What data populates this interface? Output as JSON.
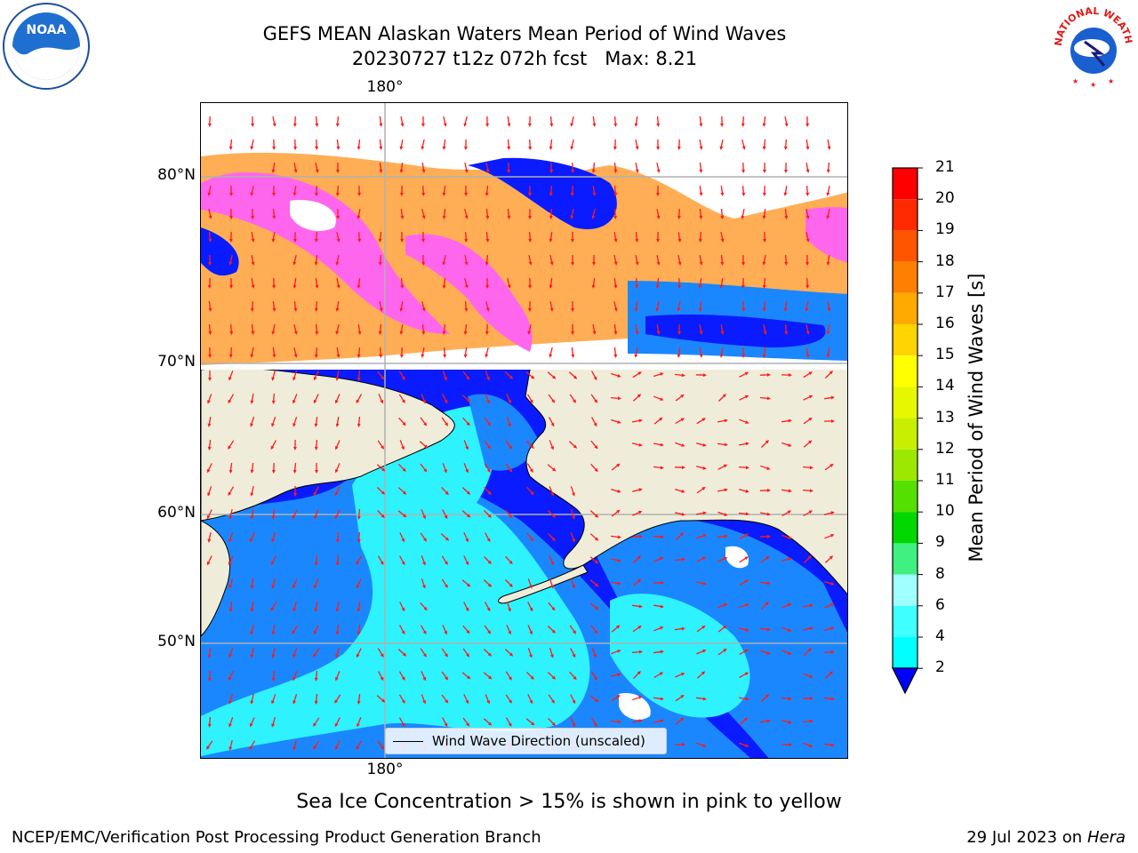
{
  "header": {
    "title_line1": "GEFS MEAN Alaskan Waters Mean Period of Wind Waves",
    "title_line2": "20230727 t12z 072h fcst   Max: 8.21"
  },
  "map": {
    "lon_label_top": "180°",
    "lon_label_bottom": "180°",
    "lat_labels": [
      "80°N",
      "70°N",
      "60°N",
      "50°N"
    ],
    "legend_label": "Wind Wave Direction (unscaled)",
    "colors": {
      "land": "#efedda",
      "ice_pink": "#ff66ee",
      "ice_orange": "#ffae55",
      "ice_light": "#ffd090",
      "wave_blue": "#0a1bff",
      "wave_mid": "#1b87ff",
      "wave_cyan": "#2ff2ff",
      "arrow": "#ff1a1a",
      "grid": "#b0b0b0"
    }
  },
  "colorbar": {
    "label": "Mean Period of Wind Waves [s]",
    "ticks": [
      "21",
      "20",
      "19",
      "18",
      "17",
      "16",
      "15",
      "14",
      "13",
      "12",
      "11",
      "10",
      "9",
      "8",
      "6",
      "4",
      "2"
    ],
    "colors": [
      "#ff0000",
      "#ff2a00",
      "#ff5500",
      "#ff8000",
      "#ffaa00",
      "#ffd400",
      "#ffff00",
      "#e6f700",
      "#c8ef00",
      "#9de800",
      "#55e000",
      "#00d800",
      "#40f080",
      "#a0ffff",
      "#40ffff",
      "#00ffff",
      "#0080ff"
    ],
    "extend_color": "#0000ff"
  },
  "subtitle": "Sea Ice Concentration > 15% is shown in pink to yellow",
  "footer": {
    "left": "NCEP/EMC/Verification Post Processing Product Generation Branch",
    "right_date": "29 Jul 2023 on",
    "right_host": "Hera"
  },
  "logos": {
    "noaa_text": "NOAA",
    "nws_text": "NATIONAL WEATHER SERVICE"
  }
}
